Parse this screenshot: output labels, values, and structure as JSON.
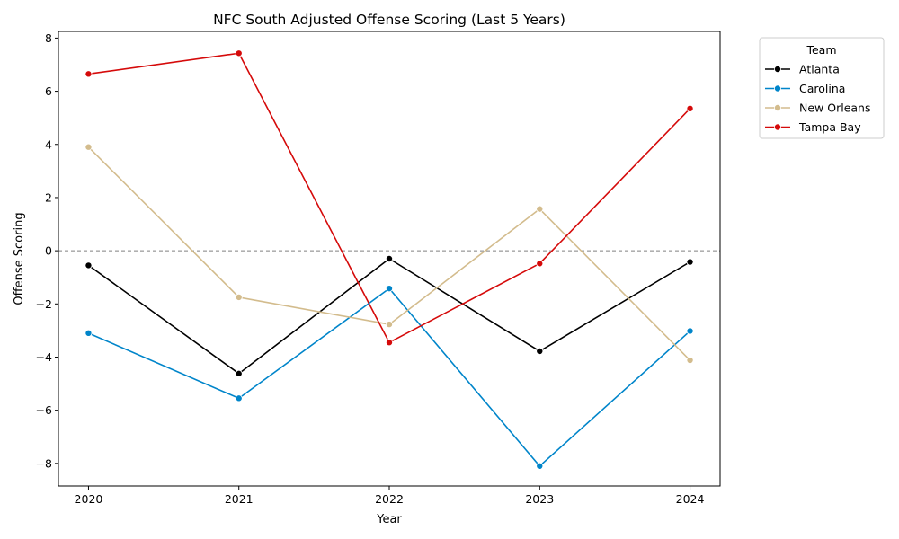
{
  "chart_data": {
    "type": "line",
    "title": "NFC South Adjusted Offense Scoring (Last 5 Years)",
    "xlabel": "Year",
    "ylabel": "Offense Scoring",
    "x": [
      2020,
      2021,
      2022,
      2023,
      2024
    ],
    "x_tick_labels": [
      "2020",
      "2021",
      "2022",
      "2023",
      "2024"
    ],
    "y_ticks": [
      -8,
      -6,
      -4,
      -2,
      0,
      2,
      4,
      6,
      8
    ],
    "y_tick_labels": [
      "−8",
      "−6",
      "−4",
      "−2",
      "0",
      "2",
      "4",
      "6",
      "8"
    ],
    "ylim": [
      -8.85,
      8.25
    ],
    "xlim": [
      2019.8,
      2024.2
    ],
    "reference_line": {
      "y": 0,
      "style": "dashed",
      "color": "#808080"
    },
    "grid": false,
    "legend": {
      "title": "Team",
      "placement": "outside-top-right"
    },
    "series": [
      {
        "name": "Atlanta",
        "color": "#000000",
        "values": [
          -0.55,
          -4.62,
          -0.3,
          -3.78,
          -0.42
        ]
      },
      {
        "name": "Carolina",
        "color": "#0085CA",
        "values": [
          -3.1,
          -5.55,
          -1.42,
          -8.1,
          -3.02
        ]
      },
      {
        "name": "New Orleans",
        "color": "#D3BC8D",
        "values": [
          3.9,
          -1.75,
          -2.77,
          1.57,
          -4.12
        ]
      },
      {
        "name": "Tampa Bay",
        "color": "#D50A0A",
        "values": [
          6.65,
          7.43,
          -3.45,
          -0.48,
          5.35
        ]
      }
    ]
  }
}
